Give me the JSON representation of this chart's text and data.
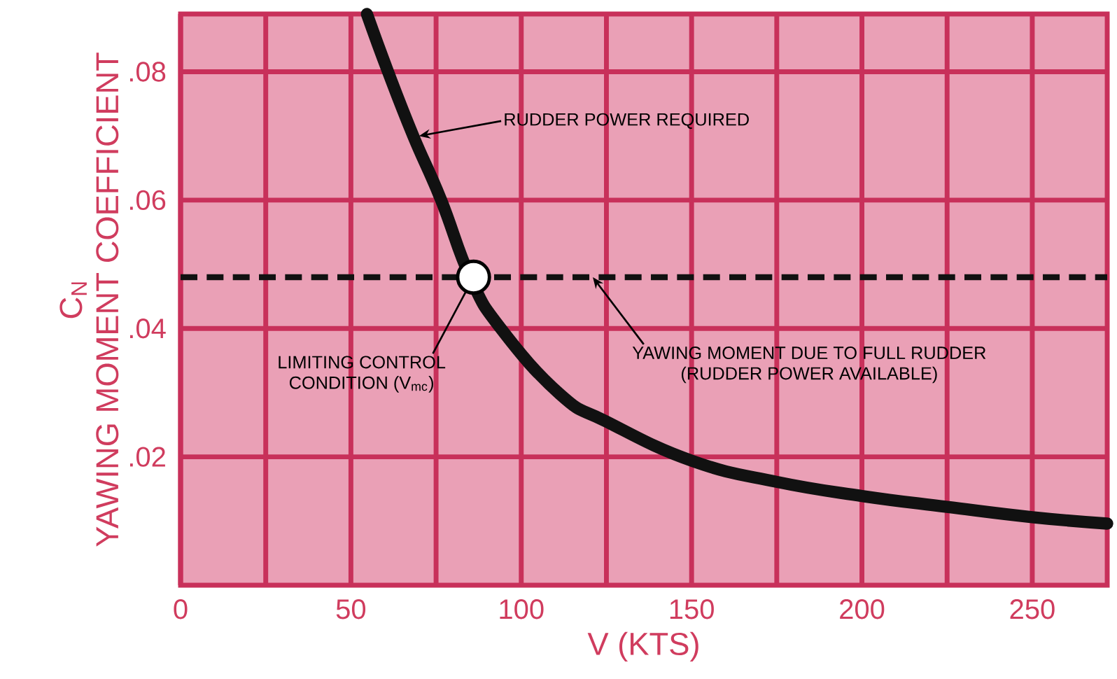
{
  "chart_data": {
    "type": "line",
    "xlabel": "V (KTS)",
    "ylabel": "YAWING MOMENT COEFFICIENT",
    "xlim": [
      0,
      272
    ],
    "ylim": [
      0,
      0.089
    ],
    "xticks": [
      0,
      {
        "value": 25,
        "label": null
      },
      50,
      {
        "value": 75,
        "label": null
      },
      100,
      {
        "value": 125,
        "label": null
      },
      150,
      {
        "value": 175,
        "label": null
      },
      200,
      {
        "value": 225,
        "label": null
      },
      250
    ],
    "yticks": [
      {
        "value": 0.02,
        "label": ".02"
      },
      {
        "value": 0.04,
        "label": ".04"
      },
      {
        "value": 0.06,
        "label": ".06"
      },
      {
        "value": 0.08,
        "label": ".08"
      }
    ],
    "grid": true,
    "series": [
      {
        "color": "#111111",
        "x": [
          54.7,
          60.9,
          68.3,
          76.5,
          85,
          94,
          111.5,
          125,
          150,
          175,
          200,
          225,
          250,
          272
        ],
        "values": [
          0.089,
          0.08,
          0.07,
          0.06,
          0.048,
          0.04,
          0.0297,
          0.0255,
          0.0194,
          0.0161,
          0.0139,
          0.0122,
          0.0106,
          0.0096
        ]
      },
      {
        "type": "scatter",
        "marker": "circle",
        "color": "#ffffff",
        "x": [
          86
        ],
        "values": [
          0.048
        ]
      }
    ],
    "ref_lines": [
      {
        "axis": "y",
        "value": 0.048,
        "color": "#111111",
        "line_style": "dashed"
      }
    ],
    "annotations": [
      "C$_{N}$",
      {
        "text": "RUDDER POWER REQUIRED",
        "x": 70,
        "y": 0.07
      },
      {
        "text": "LIMITING CONTROL CONDITION (V$_{mc}$)",
        "x": 86,
        "y": 0.048
      },
      {
        "text": "YAWING MOMENT DUE TO FULL RUDDER (RUDDER POWER AVAILABLE)",
        "x": 121,
        "y": 0.048
      }
    ]
  }
}
